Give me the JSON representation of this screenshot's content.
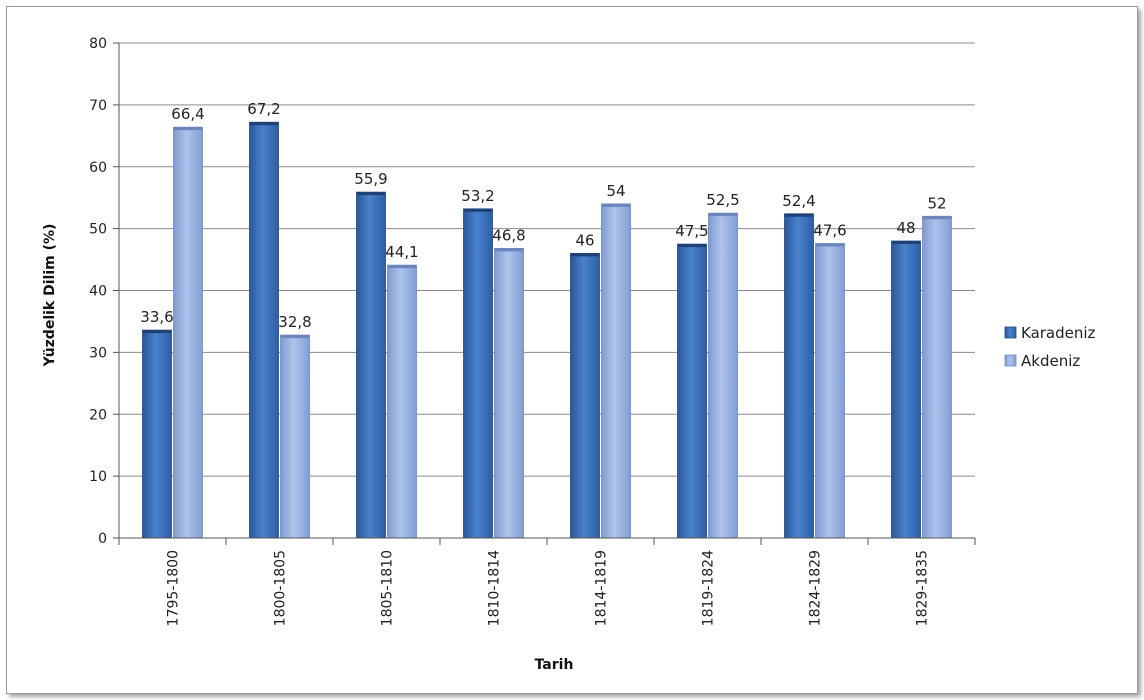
{
  "chart_data": {
    "type": "bar",
    "title": "",
    "xlabel": "Tarih",
    "ylabel": "Yüzdelik Dilim (%)",
    "categories": [
      "1795-1800",
      "1800-1805",
      "1805-1810",
      "1810-1814",
      "1814-1819",
      "1819-1824",
      "1824-1829",
      "1829-1835"
    ],
    "series": [
      {
        "name": "Karadeniz",
        "color": "#3a6fb8",
        "values": [
          33.6,
          67.2,
          55.9,
          53.2,
          46,
          47.5,
          52.4,
          48
        ],
        "labels": [
          "33,6",
          "67,2",
          "55,9",
          "53,2",
          "46",
          "47,5",
          "52,4",
          "48"
        ]
      },
      {
        "name": "Akdeniz",
        "color": "#93aede",
        "values": [
          66.4,
          32.8,
          44.1,
          46.8,
          54,
          52.5,
          47.6,
          52
        ],
        "labels": [
          "66,4",
          "32,8",
          "44,1",
          "46,8",
          "54",
          "52,5",
          "47,6",
          "52"
        ]
      }
    ],
    "ylim": [
      0,
      80
    ],
    "yticks": [
      "0",
      "10",
      "20",
      "30",
      "40",
      "50",
      "60",
      "70",
      "80"
    ],
    "grid": true,
    "legend_position": "right"
  }
}
